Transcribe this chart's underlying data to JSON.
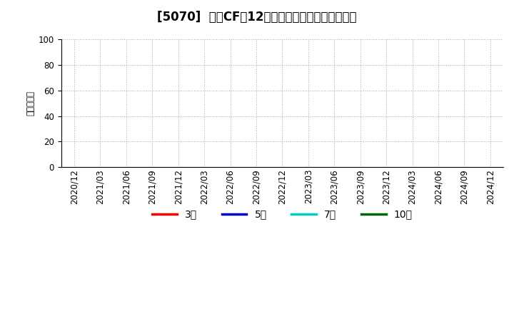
{
  "title": "[5070]  営業CFの12か月移動合計の平均値の推移",
  "ylabel": "（百万円）",
  "ylim": [
    0,
    100
  ],
  "yticks": [
    0,
    20,
    40,
    60,
    80,
    100
  ],
  "x_labels": [
    "2020/12",
    "2021/03",
    "2021/06",
    "2021/09",
    "2021/12",
    "2022/03",
    "2022/06",
    "2022/09",
    "2022/12",
    "2023/03",
    "2023/06",
    "2023/09",
    "2023/12",
    "2024/03",
    "2024/06",
    "2024/09",
    "2024/12"
  ],
  "legend_entries": [
    {
      "label": "3年",
      "color": "#ff0000"
    },
    {
      "label": "5年",
      "color": "#0000cc"
    },
    {
      "label": "7年",
      "color": "#00cccc"
    },
    {
      "label": "10年",
      "color": "#006600"
    }
  ],
  "background_color": "#ffffff",
  "grid_color": "#aaaaaa",
  "title_fontsize": 12,
  "axis_fontsize": 8.5,
  "ylabel_fontsize": 8.5,
  "legend_fontsize": 10
}
